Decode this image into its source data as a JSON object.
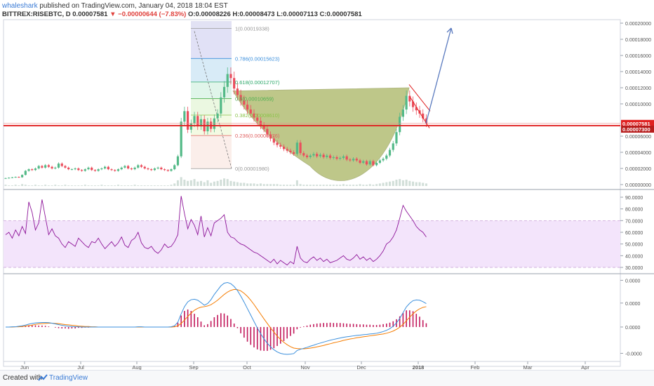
{
  "header": {
    "user": "whaleshark",
    "published": " published on TradingView.com, January 04, 2018 18:04 EST",
    "symbol_line_prefix": "BITTREX:RISEBTC, D  0.00007581 ",
    "symbol_line_arrow": "▼",
    "symbol_line_change": " −0.00000644 (−7.83%) ",
    "symbol_line_ohlc": "O:0.00008226 H:0.00008473 L:0.00007113 C:0.00007581"
  },
  "footer": {
    "created_with": "Created with",
    "brand": "TradingView"
  },
  "colors": {
    "up": "#53b987",
    "down": "#eb4d5c",
    "rsi": "#8e1599",
    "rsi_band": "#f3e4fb",
    "macd": "#3b8fdc",
    "signal": "#f57c00",
    "hist": "#c2185b",
    "red_line": "#e02020",
    "cup": "#8a9a2a",
    "arrow": "#5b7bbf"
  },
  "chart_data": [
    {
      "type": "candlestick",
      "symbol": "BITTREX:RISEBTC",
      "interval": "D",
      "x_labels": [
        "Jun",
        "Jul",
        "Aug",
        "Sep",
        "Oct",
        "Nov",
        "Dec",
        "2018",
        "Feb",
        "Mar",
        "Apr"
      ],
      "y_ticks": [
        "0.00020000",
        "0.00018000",
        "0.00016000",
        "0.00014000",
        "0.00012000",
        "0.00010000",
        "0.00006000",
        "0.00004000",
        "0.00002000",
        "0.00000000"
      ],
      "ylim": [
        0,
        0.0002
      ],
      "price_tags": [
        "0.00007581",
        "0.00007300"
      ],
      "horizontal_line": 7.3e-05,
      "fib_levels": [
        {
          "label": "1(0.00019338)",
          "value": 0.00019338
        },
        {
          "label": "0.786(0.00015623)",
          "value": 0.00015623
        },
        {
          "label": "0.618(0.00012707)",
          "value": 0.00012707
        },
        {
          "label": "0.5(0.00010659)",
          "value": 0.00010659
        },
        {
          "label": "0.382(0.00008610)",
          "value": 8.61e-05
        },
        {
          "label": "0.236(0.00006076)",
          "value": 6.076e-05
        },
        {
          "label": "0(0.00001980)",
          "value": 1.98e-05
        }
      ],
      "closes": [
        8e-06,
        8.5e-06,
        9e-06,
        9.5e-06,
        9e-06,
        1.2e-05,
        1.7e-05,
        1.9e-05,
        1.8e-05,
        2e-05,
        2.3e-05,
        2.1e-05,
        2.4e-05,
        2.2e-05,
        2e-05,
        2.1e-05,
        2.6e-05,
        2.3e-05,
        2.1e-05,
        1.9e-05,
        1.9e-05,
        2e-05,
        1.8e-05,
        1.7e-05,
        1.9e-05,
        2.1e-05,
        1.8e-05,
        1.7e-05,
        1.9e-05,
        2e-05,
        2.2e-05,
        1.9e-05,
        1.8e-05,
        1.7e-05,
        1.9e-05,
        2.1e-05,
        2.3e-05,
        2e-05,
        1.9e-05,
        2.1e-05,
        2.4e-05,
        2.2e-05,
        2e-05,
        1.9e-05,
        1.8e-05,
        2e-05,
        2.1e-05,
        1.9e-05,
        1.8e-05,
        1.7e-05,
        1.9e-05,
        2.4e-05,
        3.5e-05,
        7.8e-05,
        9.1e-05,
        6.8e-05,
        7.6e-05,
        8.5e-05,
        7.2e-05,
        8.1e-05,
        6.6e-05,
        7.8e-05,
        6.9e-05,
        8.2e-05,
        8.8e-05,
        0.000108,
        0.000121,
        0.000137,
        0.000132,
        0.000119,
        0.000111,
        0.000104,
        9.9e-05,
        9.3e-05,
        8.8e-05,
        8.3e-05,
        7.9e-05,
        7.3e-05,
        6.9e-05,
        6.2e-05,
        5.7e-05,
        5.2e-05,
        4.9e-05,
        4.7e-05,
        4.4e-05,
        4.2e-05,
        4e-05,
        3.8e-05,
        5.2e-05,
        3.9e-05,
        3.6e-05,
        3.4e-05,
        3.6e-05,
        3.8e-05,
        3.5e-05,
        3.7e-05,
        3.4e-05,
        3.6e-05,
        3.3e-05,
        3.4e-05,
        3.2e-05,
        3.3e-05,
        3.5e-05,
        3.1e-05,
        3e-05,
        3.2e-05,
        3e-05,
        2.7e-05,
        2.9e-05,
        2.5e-05,
        2.9e-05,
        2.4e-05,
        2.7e-05,
        3e-05,
        3.2e-05,
        3.6e-05,
        4.3e-05,
        5.1e-05,
        6.5e-05,
        8.4e-05,
        9.3e-05,
        0.00011,
        0.000103,
        9.6e-05,
        9.2e-05,
        8.8e-05,
        8.2e-05,
        7.58e-05
      ],
      "volume": [
        2,
        1,
        1,
        2,
        1,
        3,
        2,
        1,
        1,
        2,
        1,
        1,
        2,
        1,
        1,
        2,
        1,
        1,
        2,
        1,
        1,
        1,
        1,
        1,
        2,
        1,
        1,
        1,
        1,
        2,
        1,
        1,
        1,
        1,
        2,
        1,
        1,
        1,
        1,
        2,
        1,
        1,
        1,
        1,
        1,
        1,
        1,
        1,
        1,
        1,
        2,
        4,
        9,
        14,
        10,
        8,
        9,
        11,
        7,
        8,
        6,
        9,
        5,
        7,
        8,
        10,
        12,
        11,
        8,
        7,
        6,
        5,
        5,
        4,
        4,
        4,
        3,
        4,
        3,
        3,
        3,
        3,
        3,
        2,
        2,
        2,
        2,
        2,
        9,
        3,
        2,
        2,
        2,
        2,
        2,
        2,
        2,
        2,
        2,
        2,
        2,
        2,
        3,
        2,
        2,
        2,
        2,
        3,
        2,
        2,
        3,
        2,
        3,
        4,
        5,
        6,
        7,
        8,
        10,
        11,
        9,
        10,
        8,
        7,
        6,
        6,
        5,
        4
      ]
    },
    {
      "type": "line",
      "name": "RSI",
      "y_ticks": [
        "90.0000",
        "80.0000",
        "70.0000",
        "60.0000",
        "50.0000",
        "40.0000",
        "30.0000"
      ],
      "ylim": [
        27,
        93
      ],
      "band": [
        30,
        70
      ],
      "values": [
        58,
        60,
        55,
        62,
        57,
        65,
        59,
        86,
        77,
        62,
        68,
        88,
        73,
        58,
        63,
        57,
        55,
        50,
        47,
        52,
        50,
        48,
        55,
        52,
        49,
        47,
        52,
        51,
        55,
        50,
        46,
        49,
        52,
        48,
        51,
        56,
        49,
        47,
        53,
        55,
        60,
        51,
        47,
        46,
        48,
        44,
        42,
        45,
        50,
        47,
        48,
        52,
        58,
        91,
        76,
        63,
        71,
        66,
        58,
        74,
        56,
        64,
        57,
        68,
        70,
        72,
        75,
        60,
        56,
        55,
        52,
        50,
        49,
        47,
        45,
        43,
        42,
        40,
        38,
        36,
        34,
        37,
        33,
        36,
        34,
        32,
        35,
        33,
        48,
        38,
        35,
        34,
        37,
        39,
        36,
        38,
        35,
        37,
        34,
        35,
        36,
        38,
        40,
        37,
        36,
        38,
        41,
        37,
        39,
        36,
        38,
        35,
        37,
        40,
        44,
        50,
        52,
        56,
        62,
        72,
        83,
        78,
        74,
        70,
        65,
        62,
        60,
        56
      ]
    },
    {
      "type": "line",
      "name": "MACD",
      "y_ticks": [
        "0.0000",
        "0.0000",
        "0.0000",
        "-0.0000"
      ],
      "ylim": [
        -1.35e-05,
        2.05e-05
      ],
      "macd": [
        0,
        0,
        0.1,
        0.1,
        0.3,
        0.5,
        0.8,
        1.2,
        1.5,
        1.7,
        1.8,
        1.9,
        1.9,
        1.8,
        1.6,
        1.3,
        1.0,
        0.7,
        0.5,
        0.3,
        0.2,
        0.1,
        0.1,
        0,
        0,
        0,
        0,
        0,
        0,
        0,
        0,
        0,
        0,
        0,
        0,
        0,
        0,
        0,
        0,
        0,
        0.1,
        0.1,
        0,
        0,
        0,
        0,
        0,
        0,
        0,
        0,
        0.1,
        0.5,
        2.0,
        5.5,
        8.5,
        10.5,
        11.4,
        11.6,
        11.2,
        10.2,
        9.1,
        9.8,
        11.4,
        13.6,
        15.4,
        17.2,
        18.3,
        18.6,
        18.1,
        16.9,
        15.2,
        12.9,
        10.4,
        7.7,
        5.0,
        2.3,
        -0.4,
        -2.8,
        -4.9,
        -6.8,
        -8.3,
        -9.5,
        -10.4,
        -11.0,
        -11.3,
        -11.4,
        -11.3,
        -11.1,
        -9.8,
        -9.3,
        -8.9,
        -8.5,
        -8.0,
        -7.6,
        -7.1,
        -6.7,
        -6.3,
        -5.9,
        -5.5,
        -5.2,
        -4.9,
        -4.6,
        -4.3,
        -4.1,
        -3.9,
        -3.7,
        -3.5,
        -3.4,
        -3.2,
        -3.1,
        -2.9,
        -2.8,
        -2.6,
        -2.3,
        -1.9,
        -1.4,
        -0.7,
        0.3,
        1.7,
        3.6,
        6.0,
        8.4,
        9.9,
        11.0,
        11.3,
        11.2,
        10.6,
        9.8
      ],
      "signal": [
        0,
        0,
        0,
        0.1,
        0.1,
        0.2,
        0.4,
        0.6,
        0.8,
        1.1,
        1.3,
        1.4,
        1.5,
        1.6,
        1.6,
        1.5,
        1.4,
        1.2,
        1.0,
        0.9,
        0.7,
        0.6,
        0.4,
        0.3,
        0.2,
        0.2,
        0.1,
        0.1,
        0,
        0,
        0,
        0,
        0,
        0,
        0,
        0,
        0,
        0,
        0,
        0,
        0,
        0,
        0,
        0,
        0,
        0,
        0,
        0,
        0,
        0,
        0,
        0.1,
        0.5,
        1.5,
        2.9,
        4.4,
        5.8,
        7.0,
        7.8,
        8.3,
        8.5,
        8.8,
        9.3,
        10.2,
        11.2,
        12.4,
        13.6,
        14.6,
        15.3,
        15.7,
        15.6,
        15.1,
        14.1,
        12.8,
        11.2,
        9.4,
        7.4,
        5.4,
        3.4,
        1.5,
        -0.4,
        -2.1,
        -3.8,
        -5.2,
        -6.4,
        -7.4,
        -8.2,
        -8.8,
        -9.0,
        -9.1,
        -9.1,
        -9.0,
        -8.8,
        -8.6,
        -8.3,
        -8.0,
        -7.7,
        -7.3,
        -7.0,
        -6.6,
        -6.3,
        -6.0,
        -5.6,
        -5.3,
        -5.0,
        -4.8,
        -4.5,
        -4.3,
        -4.1,
        -3.9,
        -3.7,
        -3.5,
        -3.3,
        -3.1,
        -2.9,
        -2.6,
        -2.2,
        -1.7,
        -1.0,
        -0.1,
        1.1,
        2.6,
        4.1,
        5.5,
        6.7,
        7.6,
        8.2,
        8.5
      ]
    }
  ]
}
